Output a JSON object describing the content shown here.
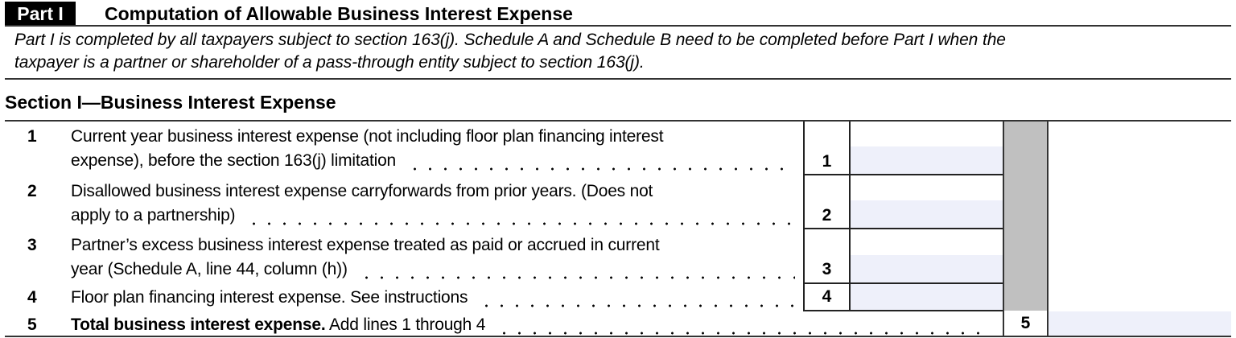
{
  "part": {
    "label": "Part I",
    "title": "Computation of Allowable Business Interest Expense"
  },
  "intro": [
    "Part I is completed by all taxpayers subject to section 163(j). Schedule A and Schedule B need to be completed before Part I when the",
    "taxpayer is a partner or shareholder of a pass-through entity subject to section 163(j)."
  ],
  "section": "Section I—Business Interest Expense",
  "lines": [
    {
      "num": "1",
      "text1": "Current year business interest expense (not including floor plan financing interest",
      "text2": "expense), before the section 163(j) limitation",
      "box": "1"
    },
    {
      "num": "2",
      "text1": "Disallowed business interest expense carryforwards from prior years. (Does not",
      "text2": "apply to a partnership)",
      "box": "2"
    },
    {
      "num": "3",
      "text1": "Partner’s excess business interest expense treated as paid or accrued in current",
      "text2": "year (Schedule A, line 44, column (h))",
      "box": "3"
    },
    {
      "num": "4",
      "text1": "Floor plan financing interest expense. See instructions",
      "box": "4"
    },
    {
      "num": "5",
      "bold": "Total business interest expense.",
      "text1": " Add lines 1 through 4",
      "box": "5"
    }
  ],
  "colors": {
    "field_fill": "#eef0fa",
    "shade": "#c0c0c0"
  }
}
